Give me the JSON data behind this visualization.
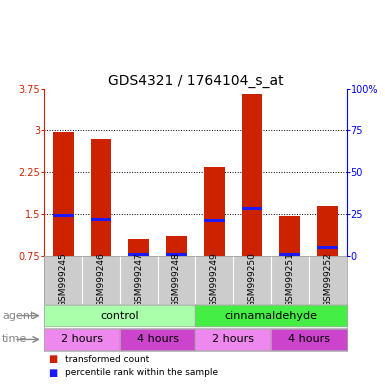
{
  "title": "GDS4321 / 1764104_s_at",
  "samples": [
    "GSM999245",
    "GSM999246",
    "GSM999247",
    "GSM999248",
    "GSM999249",
    "GSM999250",
    "GSM999251",
    "GSM999252"
  ],
  "red_values": [
    2.97,
    2.85,
    1.05,
    1.1,
    2.35,
    3.65,
    1.47,
    1.65
  ],
  "blue_values": [
    1.47,
    1.4,
    0.77,
    0.77,
    1.38,
    1.6,
    0.77,
    0.9
  ],
  "ylim_left": [
    0.75,
    3.75
  ],
  "ylim_right": [
    0,
    100
  ],
  "yticks_left": [
    0.75,
    1.5,
    2.25,
    3.0,
    3.75
  ],
  "ytick_labels_left": [
    "0.75",
    "1.5",
    "2.25",
    "3",
    "3.75"
  ],
  "yticks_right": [
    0,
    25,
    50,
    75,
    100
  ],
  "ytick_labels_right": [
    "0",
    "25",
    "50",
    "75",
    "100%"
  ],
  "dotted_lines": [
    1.5,
    2.25,
    3.0
  ],
  "bar_color": "#cc2200",
  "blue_color": "#1a1aff",
  "bar_width": 0.55,
  "agent_groups": [
    {
      "label": "control",
      "start": 0,
      "end": 4,
      "color": "#aaffaa"
    },
    {
      "label": "cinnamaldehyde",
      "start": 4,
      "end": 8,
      "color": "#44ee44"
    }
  ],
  "time_groups": [
    {
      "label": "2 hours",
      "start": 0,
      "end": 2,
      "color": "#ee88ee"
    },
    {
      "label": "4 hours",
      "start": 2,
      "end": 4,
      "color": "#cc44cc"
    },
    {
      "label": "2 hours",
      "start": 4,
      "end": 6,
      "color": "#ee88ee"
    },
    {
      "label": "4 hours",
      "start": 6,
      "end": 8,
      "color": "#cc44cc"
    }
  ],
  "legend_red": "transformed count",
  "legend_blue": "percentile rank within the sample",
  "agent_label": "agent",
  "time_label": "time",
  "bg_color": "#ffffff",
  "title_fontsize": 10,
  "tick_fontsize": 7,
  "label_fontsize": 8,
  "sample_fontsize": 6.5,
  "row_label_fontsize": 8
}
